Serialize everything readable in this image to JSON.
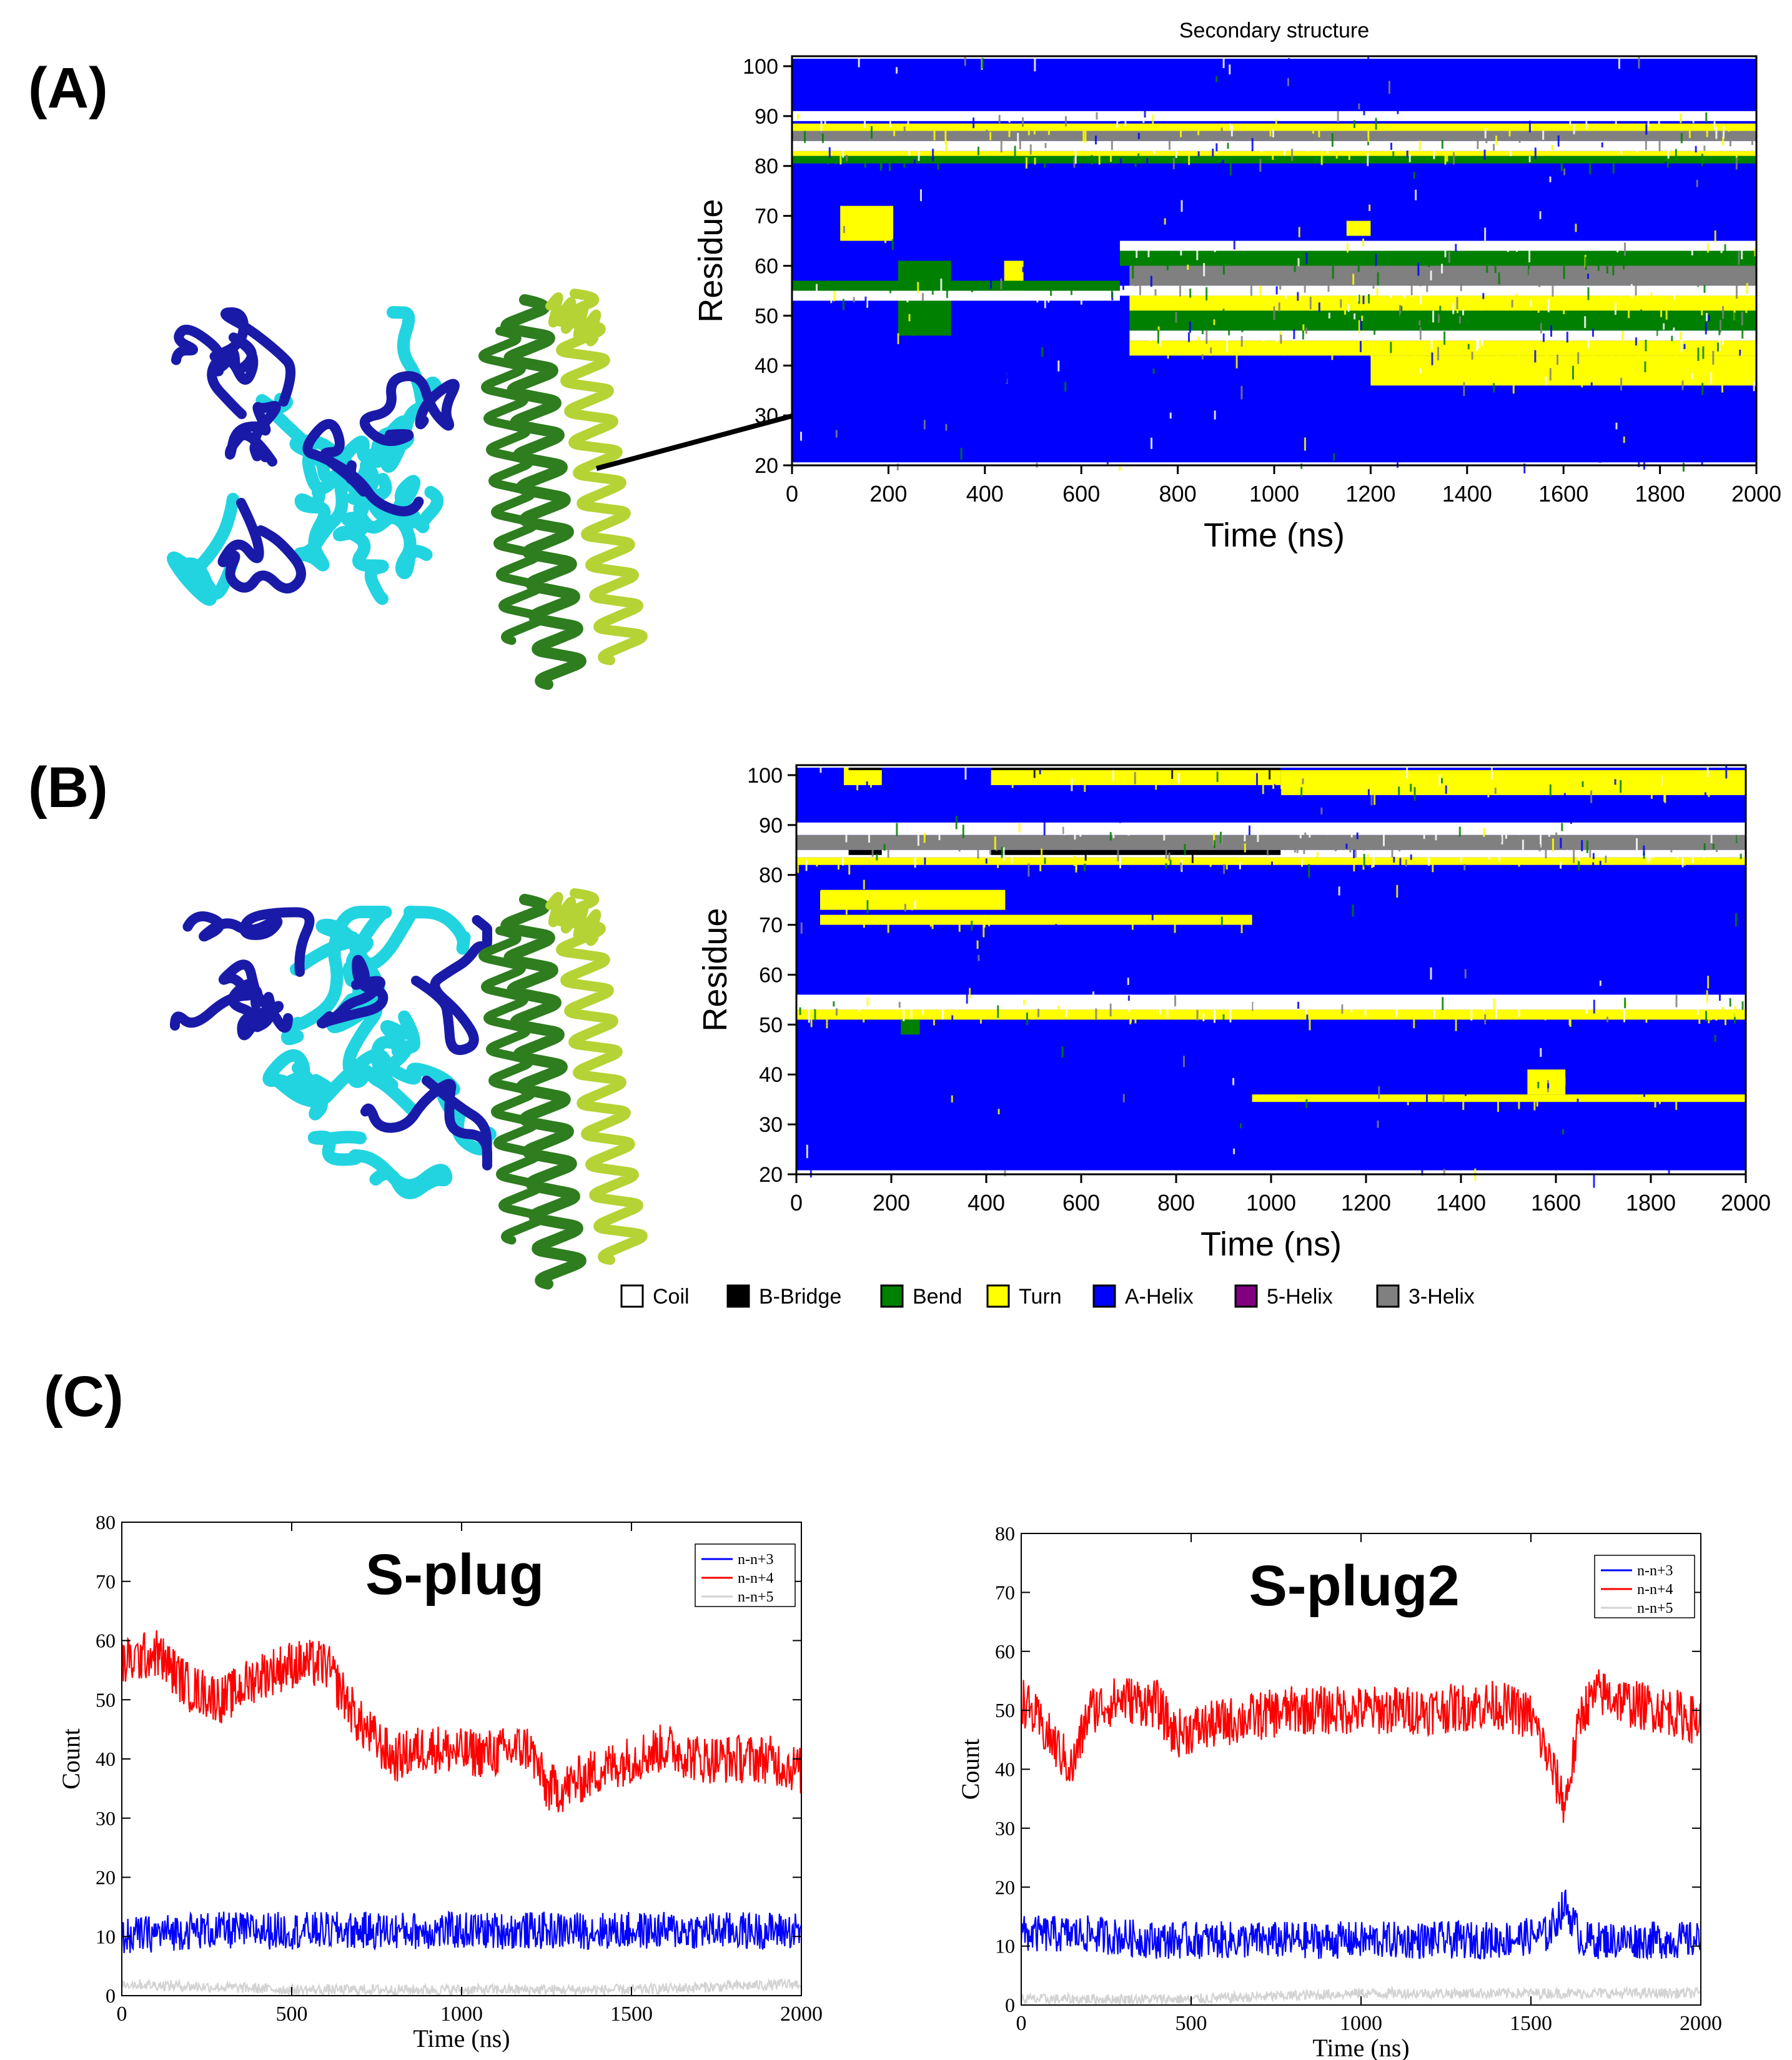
{
  "panels": {
    "a": "(A)",
    "b": "(B)",
    "c": "(C)"
  },
  "colors": {
    "coil": "#ffffff",
    "bbridge": "#000000",
    "bend": "#008000",
    "turn": "#ffff00",
    "ahelix": "#0000ff",
    "fivehelix": "#800080",
    "threehelix": "#808080",
    "n3": "#0000ff",
    "n4": "#ff0000",
    "n5": "#d3d3d3",
    "cyan": "#21d4e0",
    "navy": "#1a1aa8",
    "green": "#2e7d1f",
    "lime": "#b5d334"
  },
  "chart_data": [
    {
      "type": "heatmap",
      "id": "A",
      "title": "Secondary structure",
      "xlabel": "Time (ns)",
      "ylabel": "Residue",
      "xlim": [
        0,
        2000
      ],
      "ylim": [
        20,
        102
      ],
      "xticks": [
        "0",
        "200",
        "400",
        "600",
        "800",
        "1000",
        "1200",
        "1400",
        "1600",
        "1800",
        "2000"
      ],
      "yticks": [
        "20",
        "30",
        "40",
        "50",
        "60",
        "70",
        "80",
        "90",
        "100"
      ],
      "background": "ahelix",
      "regions": [
        {
          "t0": 0,
          "t1": 2000,
          "r0": 89,
          "r1": 91,
          "code": "coil"
        },
        {
          "t0": 0,
          "t1": 2000,
          "r0": 87,
          "r1": 88.5,
          "code": "turn"
        },
        {
          "t0": 0,
          "t1": 2000,
          "r0": 85,
          "r1": 87,
          "code": "threehelix"
        },
        {
          "t0": 0,
          "t1": 2000,
          "r0": 83,
          "r1": 85,
          "code": "coil"
        },
        {
          "t0": 0,
          "t1": 2000,
          "r0": 82,
          "r1": 83,
          "code": "turn"
        },
        {
          "t0": 0,
          "t1": 2000,
          "r0": 80.5,
          "r1": 82,
          "code": "bend"
        },
        {
          "t0": 100,
          "t1": 210,
          "r0": 65,
          "r1": 72,
          "code": "turn"
        },
        {
          "t0": 220,
          "t1": 330,
          "r0": 46,
          "r1": 61,
          "code": "bend"
        },
        {
          "t0": 440,
          "t1": 480,
          "r0": 55,
          "r1": 61,
          "code": "turn"
        },
        {
          "t0": 0,
          "t1": 680,
          "r0": 53,
          "r1": 55,
          "code": "coil"
        },
        {
          "t0": 0,
          "t1": 680,
          "r0": 55,
          "r1": 57,
          "code": "bend"
        },
        {
          "t0": 680,
          "t1": 2000,
          "r0": 63,
          "r1": 65,
          "code": "coil"
        },
        {
          "t0": 680,
          "t1": 2000,
          "r0": 60,
          "r1": 63,
          "code": "bend"
        },
        {
          "t0": 700,
          "t1": 2000,
          "r0": 56,
          "r1": 60,
          "code": "threehelix"
        },
        {
          "t0": 680,
          "t1": 2000,
          "r0": 54,
          "r1": 56,
          "code": "coil"
        },
        {
          "t0": 700,
          "t1": 2000,
          "r0": 51,
          "r1": 54,
          "code": "turn"
        },
        {
          "t0": 700,
          "t1": 2000,
          "r0": 47,
          "r1": 51,
          "code": "bend"
        },
        {
          "t0": 700,
          "t1": 2000,
          "r0": 45,
          "r1": 47,
          "code": "coil"
        },
        {
          "t0": 700,
          "t1": 2000,
          "r0": 42,
          "r1": 45,
          "code": "turn"
        },
        {
          "t0": 1200,
          "t1": 2000,
          "r0": 36,
          "r1": 42,
          "code": "turn"
        },
        {
          "t0": 1150,
          "t1": 1200,
          "r0": 66,
          "r1": 69,
          "code": "turn"
        },
        {
          "t0": 0,
          "t1": 2000,
          "r0": 101.5,
          "r1": 102,
          "code": "coil"
        },
        {
          "t0": 0,
          "t1": 2000,
          "r0": 20,
          "r1": 20.6,
          "code": "coil"
        }
      ]
    },
    {
      "type": "heatmap",
      "id": "B",
      "xlabel": "Time (ns)",
      "ylabel": "Residue",
      "xlim": [
        0,
        2000
      ],
      "ylim": [
        20,
        102
      ],
      "xticks": [
        "0",
        "200",
        "400",
        "600",
        "800",
        "1000",
        "1200",
        "1400",
        "1600",
        "1800",
        "2000"
      ],
      "yticks": [
        "20",
        "30",
        "40",
        "50",
        "60",
        "70",
        "80",
        "90",
        "100"
      ],
      "background": "ahelix",
      "regions": [
        {
          "t0": 0,
          "t1": 2000,
          "r0": 88,
          "r1": 90.5,
          "code": "coil"
        },
        {
          "t0": 0,
          "t1": 2000,
          "r0": 85,
          "r1": 88,
          "code": "threehelix"
        },
        {
          "t0": 0,
          "t1": 2000,
          "r0": 83.5,
          "r1": 85,
          "code": "coil"
        },
        {
          "t0": 0,
          "t1": 2000,
          "r0": 82,
          "r1": 83.5,
          "code": "turn"
        },
        {
          "t0": 110,
          "t1": 180,
          "r0": 84,
          "r1": 85,
          "code": "bbridge"
        },
        {
          "t0": 410,
          "t1": 1020,
          "r0": 84,
          "r1": 85,
          "code": "bbridge"
        },
        {
          "t0": 410,
          "t1": 1020,
          "r0": 98,
          "r1": 102,
          "code": "turn"
        },
        {
          "t0": 410,
          "t1": 1020,
          "r0": 101,
          "r1": 102,
          "code": "bbridge"
        },
        {
          "t0": 100,
          "t1": 180,
          "r0": 98,
          "r1": 102,
          "code": "turn"
        },
        {
          "t0": 110,
          "t1": 180,
          "r0": 101,
          "r1": 102,
          "code": "bbridge"
        },
        {
          "t0": 1020,
          "t1": 2000,
          "r0": 96,
          "r1": 101,
          "code": "turn"
        },
        {
          "t0": 0,
          "t1": 2000,
          "r0": 53,
          "r1": 56,
          "code": "coil"
        },
        {
          "t0": 0,
          "t1": 2000,
          "r0": 51,
          "r1": 53,
          "code": "turn"
        },
        {
          "t0": 50,
          "t1": 960,
          "r0": 70,
          "r1": 72,
          "code": "turn"
        },
        {
          "t0": 50,
          "t1": 440,
          "r0": 73,
          "r1": 77,
          "code": "turn"
        },
        {
          "t0": 960,
          "t1": 2000,
          "r0": 34.5,
          "r1": 36,
          "code": "turn"
        },
        {
          "t0": 1540,
          "t1": 1620,
          "r0": 36,
          "r1": 41,
          "code": "turn"
        },
        {
          "t0": 220,
          "t1": 260,
          "r0": 48,
          "r1": 51,
          "code": "bend"
        },
        {
          "t0": 0,
          "t1": 2000,
          "r0": 101.5,
          "r1": 102,
          "code": "coil"
        },
        {
          "t0": 0,
          "t1": 2000,
          "r0": 20,
          "r1": 20.8,
          "code": "coil"
        }
      ]
    },
    {
      "type": "line",
      "id": "C1",
      "title": "S-plug",
      "xlabel": "Time (ns)",
      "ylabel": "Count",
      "xlim": [
        0,
        2000
      ],
      "ylim": [
        0,
        80
      ],
      "xticks": [
        "0",
        "500",
        "1000",
        "1500",
        "2000"
      ],
      "yticks": [
        "0",
        "10",
        "20",
        "30",
        "40",
        "50",
        "60",
        "70",
        "80"
      ],
      "legend_position": "top-right",
      "series": [
        {
          "name": "n-n+3",
          "color": "n3",
          "x": [
            0,
            200,
            400,
            600,
            800,
            1000,
            1200,
            1400,
            1600,
            1800,
            2000
          ],
          "values": [
            10,
            11,
            11,
            11,
            11,
            11,
            11,
            11,
            11,
            11,
            11
          ]
        },
        {
          "name": "n-n+4",
          "color": "n4",
          "x": [
            0,
            100,
            200,
            300,
            400,
            500,
            600,
            700,
            800,
            900,
            1000,
            1100,
            1200,
            1250,
            1300,
            1400,
            1500,
            1600,
            1700,
            1800,
            1900,
            2000
          ],
          "values": [
            56,
            58,
            52,
            50,
            54,
            56,
            56,
            46,
            40,
            42,
            41,
            41,
            42,
            35,
            35,
            38,
            40,
            42,
            40,
            40,
            40,
            38
          ]
        },
        {
          "name": "n-n+5",
          "color": "n5",
          "x": [
            0,
            500,
            1000,
            1500,
            2000
          ],
          "values": [
            2,
            1,
            1,
            1,
            2
          ]
        }
      ]
    },
    {
      "type": "line",
      "id": "C2",
      "title": "S-plug2",
      "xlabel": "Time (ns)",
      "ylabel": "Count",
      "xlim": [
        0,
        2000
      ],
      "ylim": [
        0,
        80
      ],
      "xticks": [
        "0",
        "500",
        "1000",
        "1500",
        "2000"
      ],
      "yticks": [
        "0",
        "10",
        "20",
        "30",
        "40",
        "50",
        "60",
        "70",
        "80"
      ],
      "legend_position": "top-right",
      "series": [
        {
          "name": "n-n+3",
          "color": "n3",
          "x": [
            0,
            200,
            400,
            600,
            800,
            1000,
            1200,
            1400,
            1550,
            1600,
            1650,
            1800,
            2000
          ],
          "values": [
            12,
            12,
            11,
            11,
            11,
            11,
            11,
            11,
            12,
            17,
            11,
            11,
            11
          ]
        },
        {
          "name": "n-n+4",
          "color": "n4",
          "x": [
            0,
            100,
            150,
            200,
            300,
            400,
            450,
            600,
            800,
            1000,
            1200,
            1400,
            1500,
            1550,
            1600,
            1650,
            1700,
            1800,
            1900,
            2000
          ],
          "values": [
            52,
            44,
            40,
            50,
            52,
            51,
            46,
            48,
            50,
            50,
            50,
            51,
            49,
            42,
            34,
            50,
            53,
            51,
            50,
            48
          ]
        },
        {
          "name": "n-n+5",
          "color": "n5",
          "x": [
            0,
            500,
            1000,
            1500,
            2000
          ],
          "values": [
            1,
            1,
            2,
            2,
            2
          ]
        }
      ]
    }
  ],
  "legend": [
    {
      "code": "coil",
      "label": "Coil"
    },
    {
      "code": "bbridge",
      "label": "B-Bridge"
    },
    {
      "code": "bend",
      "label": "Bend"
    },
    {
      "code": "turn",
      "label": "Turn"
    },
    {
      "code": "ahelix",
      "label": "A-Helix"
    },
    {
      "code": "fivehelix",
      "label": "5-Helix"
    },
    {
      "code": "threehelix",
      "label": "3-Helix"
    }
  ]
}
